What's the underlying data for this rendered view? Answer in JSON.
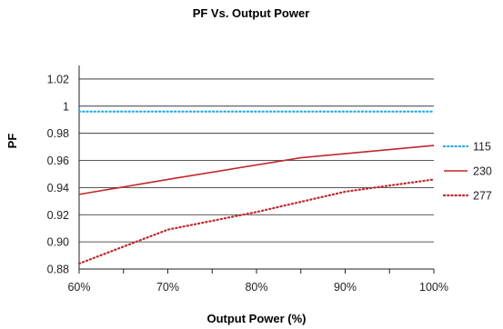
{
  "chart_data": {
    "type": "line",
    "title": "PF Vs. Output Power",
    "xlabel": "Output Power (%)",
    "ylabel": "PF",
    "x_tick_labels": [
      "60%",
      "70%",
      "80%",
      "90%",
      "100%"
    ],
    "y_tick_labels": [
      "0.88",
      "0.90",
      "0.92",
      "0.94",
      "0.96",
      "0.98",
      "1",
      "1.02"
    ],
    "xlim": [
      60,
      100
    ],
    "ylim": [
      0.88,
      1.03
    ],
    "grid": "horizontal",
    "legend_position": "right",
    "series": [
      {
        "name": "115",
        "color": "#29abe2",
        "style": "dotted",
        "x": [
          60,
          100
        ],
        "y": [
          0.996,
          0.996
        ]
      },
      {
        "name": "230",
        "color": "#c1272d",
        "style": "solid",
        "x": [
          60,
          70,
          85,
          90,
          100
        ],
        "y": [
          0.935,
          0.946,
          0.962,
          0.965,
          0.971
        ]
      },
      {
        "name": "277",
        "color": "#c1272d",
        "style": "dotted",
        "x": [
          60,
          70,
          80,
          90,
          100
        ],
        "y": [
          0.884,
          0.909,
          0.922,
          0.937,
          0.946
        ]
      }
    ]
  }
}
